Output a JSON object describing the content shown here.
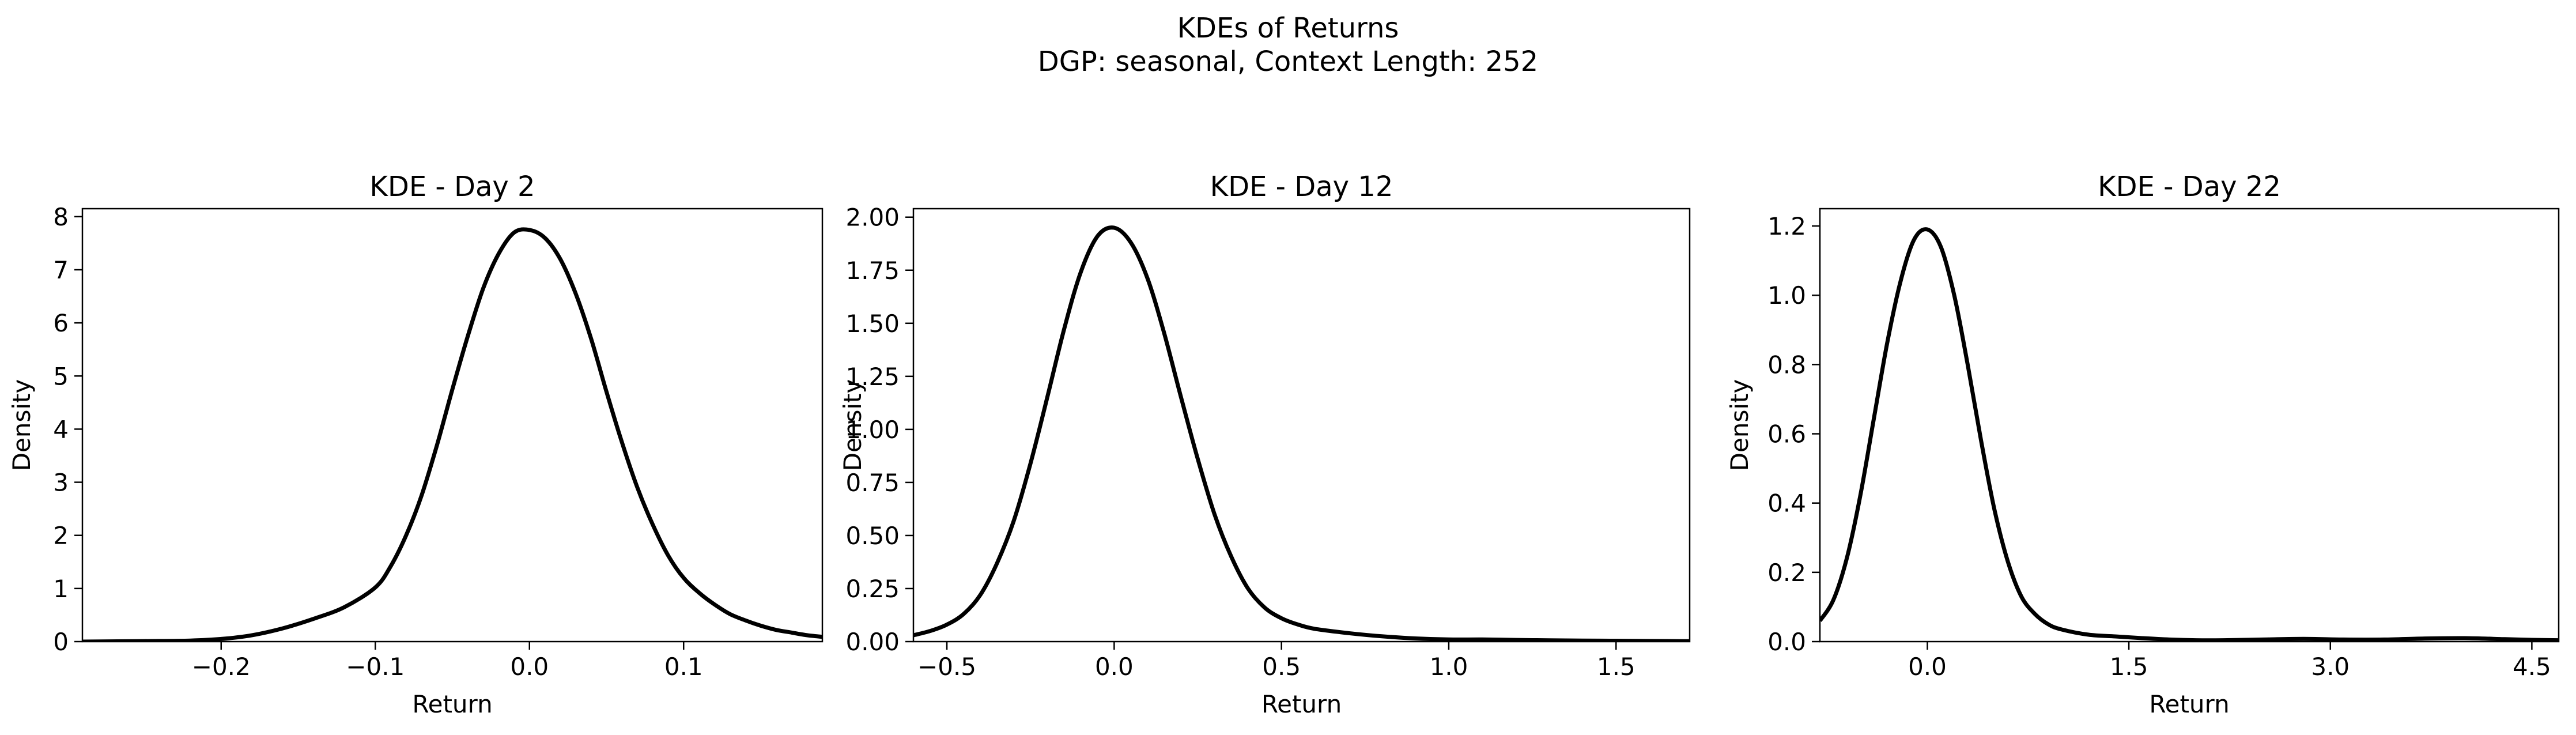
{
  "figure": {
    "title": "KDEs of Returns",
    "subtitle": "DGP: seasonal, Context Length: 252"
  },
  "chart_data": [
    {
      "type": "line",
      "title": "KDE - Day 2",
      "xlabel": "Return",
      "ylabel": "Density",
      "xlim": [
        -0.29,
        0.19
      ],
      "ylim": [
        0,
        8.15
      ],
      "xticks": [
        -0.2,
        -0.1,
        0.0,
        0.1
      ],
      "xtick_labels": [
        "−0.2",
        "−0.1",
        "0.0",
        "0.1"
      ],
      "yticks": [
        0,
        1,
        2,
        3,
        4,
        5,
        6,
        7,
        8
      ],
      "ytick_labels": [
        "0",
        "1",
        "2",
        "3",
        "4",
        "5",
        "6",
        "7",
        "8"
      ],
      "grid": false,
      "series": [
        {
          "color": "#000000",
          "x": [
            -0.29,
            -0.25,
            -0.22,
            -0.2,
            -0.18,
            -0.16,
            -0.14,
            -0.12,
            -0.1,
            -0.09,
            -0.08,
            -0.07,
            -0.06,
            -0.05,
            -0.04,
            -0.03,
            -0.02,
            -0.01,
            0.0,
            0.01,
            0.02,
            0.03,
            0.04,
            0.05,
            0.06,
            0.07,
            0.08,
            0.09,
            0.1,
            0.11,
            0.12,
            0.13,
            0.14,
            0.15,
            0.16,
            0.17,
            0.18,
            0.19
          ],
          "y": [
            0.0,
            0.01,
            0.02,
            0.05,
            0.12,
            0.25,
            0.43,
            0.65,
            1.02,
            1.42,
            2.0,
            2.75,
            3.7,
            4.75,
            5.75,
            6.65,
            7.3,
            7.7,
            7.75,
            7.6,
            7.2,
            6.55,
            5.7,
            4.7,
            3.75,
            2.9,
            2.2,
            1.62,
            1.2,
            0.92,
            0.7,
            0.52,
            0.4,
            0.3,
            0.22,
            0.17,
            0.12,
            0.09
          ]
        }
      ]
    },
    {
      "type": "line",
      "title": "KDE - Day 12",
      "xlabel": "Return",
      "ylabel": "Density",
      "xlim": [
        -0.6,
        1.72
      ],
      "ylim": [
        0,
        2.04
      ],
      "xticks": [
        -0.5,
        0.0,
        0.5,
        1.0,
        1.5
      ],
      "xtick_labels": [
        "−0.5",
        "0.0",
        "0.5",
        "1.0",
        "1.5"
      ],
      "yticks": [
        0,
        0.25,
        0.5,
        0.75,
        1.0,
        1.25,
        1.5,
        1.75,
        2.0
      ],
      "ytick_labels": [
        "0.00",
        "0.25",
        "0.50",
        "0.75",
        "1.00",
        "1.25",
        "1.50",
        "1.75",
        "2.00"
      ],
      "grid": false,
      "series": [
        {
          "color": "#000000",
          "x": [
            -0.6,
            -0.55,
            -0.5,
            -0.45,
            -0.4,
            -0.35,
            -0.3,
            -0.25,
            -0.2,
            -0.15,
            -0.1,
            -0.05,
            0.0,
            0.05,
            0.1,
            0.15,
            0.2,
            0.25,
            0.3,
            0.35,
            0.4,
            0.45,
            0.5,
            0.55,
            0.6,
            0.7,
            0.8,
            0.9,
            1.0,
            1.1,
            1.2,
            1.3,
            1.4,
            1.5,
            1.6,
            1.72
          ],
          "y": [
            0.03,
            0.05,
            0.08,
            0.13,
            0.22,
            0.37,
            0.57,
            0.84,
            1.15,
            1.47,
            1.74,
            1.91,
            1.95,
            1.88,
            1.71,
            1.45,
            1.15,
            0.86,
            0.6,
            0.4,
            0.25,
            0.16,
            0.11,
            0.08,
            0.06,
            0.04,
            0.025,
            0.015,
            0.01,
            0.01,
            0.008,
            0.006,
            0.005,
            0.004,
            0.003,
            0.002
          ]
        }
      ]
    },
    {
      "type": "line",
      "title": "KDE - Day 22",
      "xlabel": "Return",
      "ylabel": "Density",
      "xlim": [
        -0.8,
        4.7
      ],
      "ylim": [
        0,
        1.25
      ],
      "xticks": [
        0.0,
        1.5,
        3.0,
        4.5
      ],
      "xtick_labels": [
        "0.0",
        "1.5",
        "3.0",
        "4.5"
      ],
      "yticks": [
        0,
        0.2,
        0.4,
        0.6,
        0.8,
        1.0,
        1.2
      ],
      "ytick_labels": [
        "0.0",
        "0.2",
        "0.4",
        "0.6",
        "0.8",
        "1.0",
        "1.2"
      ],
      "grid": false,
      "series": [
        {
          "color": "#000000",
          "x": [
            -0.8,
            -0.7,
            -0.6,
            -0.5,
            -0.4,
            -0.3,
            -0.2,
            -0.1,
            0.0,
            0.1,
            0.2,
            0.3,
            0.4,
            0.5,
            0.6,
            0.7,
            0.8,
            0.9,
            1.0,
            1.2,
            1.4,
            1.6,
            1.8,
            2.0,
            2.2,
            2.5,
            2.8,
            3.1,
            3.4,
            3.7,
            4.0,
            4.3,
            4.5,
            4.7
          ],
          "y": [
            0.06,
            0.12,
            0.24,
            0.42,
            0.64,
            0.86,
            1.04,
            1.16,
            1.19,
            1.14,
            1.0,
            0.8,
            0.58,
            0.38,
            0.23,
            0.13,
            0.08,
            0.05,
            0.035,
            0.02,
            0.015,
            0.01,
            0.006,
            0.004,
            0.004,
            0.006,
            0.008,
            0.006,
            0.006,
            0.009,
            0.01,
            0.007,
            0.005,
            0.004
          ]
        }
      ]
    }
  ]
}
